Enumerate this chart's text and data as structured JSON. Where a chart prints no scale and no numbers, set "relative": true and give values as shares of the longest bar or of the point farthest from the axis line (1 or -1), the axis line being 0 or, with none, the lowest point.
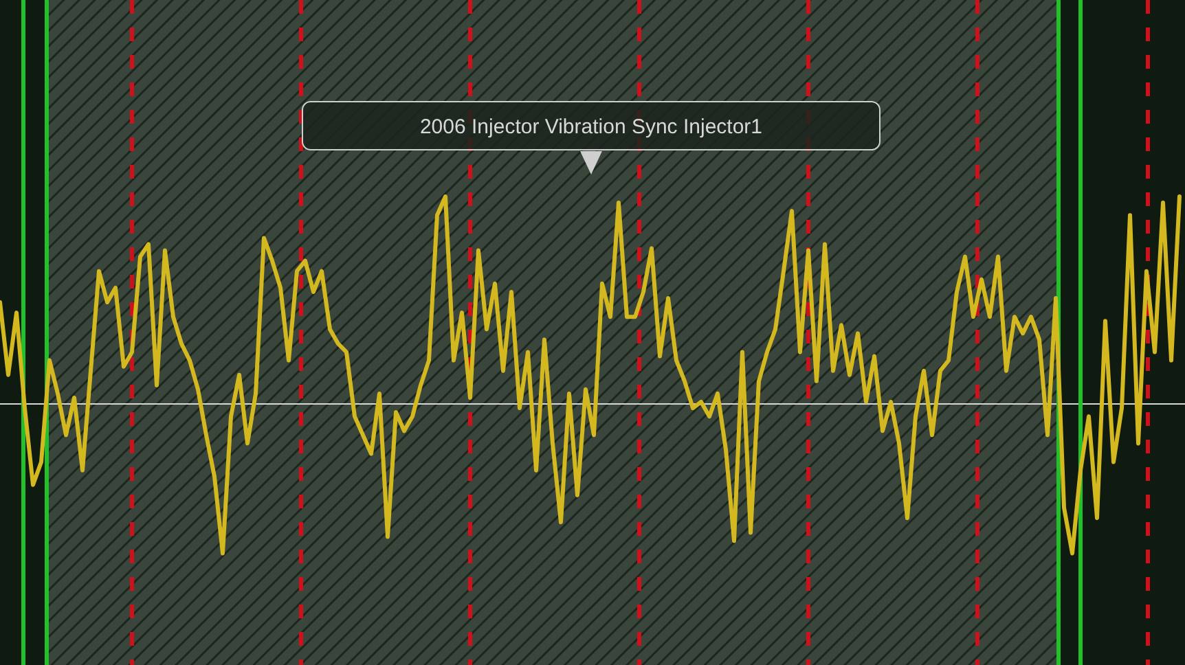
{
  "chart_data": {
    "type": "line",
    "relative": true,
    "annotations": [
      "2006 Injector Vibration Sync Injector1"
    ],
    "categories": [
      null,
      null,
      null,
      null,
      null,
      null,
      null,
      null,
      null,
      null,
      null,
      null,
      null,
      null,
      null,
      null,
      null,
      null,
      null,
      null,
      null,
      null,
      null,
      null,
      null,
      null,
      null,
      null,
      null,
      null,
      null,
      null,
      null,
      null,
      null,
      null,
      null,
      null,
      null,
      null,
      null,
      null,
      null,
      null,
      null,
      null,
      null,
      null,
      null,
      null,
      null,
      null,
      null,
      null,
      null,
      null,
      null,
      null,
      null,
      null,
      null,
      null,
      null,
      null,
      null,
      null,
      null,
      null,
      null,
      null,
      null,
      null,
      null,
      null,
      null,
      null,
      null,
      null,
      null,
      null,
      null,
      null,
      null,
      null,
      null,
      null,
      null,
      null,
      null,
      null,
      null,
      null,
      null,
      null,
      null,
      null,
      null,
      null,
      null,
      null,
      null,
      null,
      null,
      null,
      null,
      null,
      null,
      null,
      null,
      null,
      null,
      null,
      null,
      null,
      null,
      null,
      null,
      null,
      null,
      null,
      null,
      null,
      null,
      null,
      null,
      null,
      null,
      null,
      null,
      null,
      null,
      null,
      null,
      null,
      null,
      null,
      null,
      null,
      null,
      null,
      null,
      null,
      null,
      null
    ],
    "series": [
      {
        "color": "#d4b820",
        "values": [
          0.49,
          0.14,
          0.44,
          -0.02,
          -0.39,
          -0.28,
          0.21,
          0.05,
          -0.15,
          0.03,
          -0.32,
          0.16,
          0.64,
          0.49,
          0.56,
          0.18,
          0.25,
          0.71,
          0.77,
          0.09,
          0.74,
          0.42,
          0.29,
          0.21,
          0.07,
          -0.15,
          -0.35,
          -0.72,
          -0.06,
          0.14,
          -0.19,
          0.05,
          0.8,
          0.69,
          0.56,
          0.21,
          0.64,
          0.69,
          0.54,
          0.64,
          0.36,
          0.29,
          0.25,
          -0.06,
          -0.15,
          -0.24,
          0.05,
          -0.64,
          -0.04,
          -0.13,
          -0.06,
          0.09,
          0.21,
          0.91,
          1,
          0.21,
          0.44,
          0.03,
          0.74,
          0.36,
          0.58,
          0.16,
          0.54,
          -0.02,
          0.25,
          -0.32,
          0.31,
          -0.19,
          -0.57,
          0.05,
          -0.44,
          0.07,
          -0.15,
          0.58,
          0.42,
          0.97,
          0.42,
          0.42,
          0.54,
          0.75,
          0.23,
          0.51,
          0.21,
          0.11,
          -0.02,
          0.01,
          -0.06,
          0.05,
          -0.22,
          -0.66,
          0.25,
          -0.62,
          0.11,
          0.25,
          0.36,
          0.64,
          0.93,
          0.25,
          0.74,
          0.11,
          0.77,
          0.16,
          0.38,
          0.14,
          0.34,
          0.01,
          0.23,
          -0.13,
          0.01,
          -0.19,
          -0.55,
          -0.06,
          0.16,
          -0.15,
          0.16,
          0.21,
          0.54,
          0.71,
          0.42,
          0.6,
          0.42,
          0.71,
          0.16,
          0.42,
          0.34,
          0.42,
          0.31,
          -0.15,
          0.51,
          -0.5,
          -0.72,
          -0.32,
          -0.06,
          -0.55,
          0.4,
          -0.28,
          -0.02,
          0.91,
          -0.19,
          0.64,
          0.25,
          0.97,
          0.21,
          1
        ]
      }
    ]
  }
}
